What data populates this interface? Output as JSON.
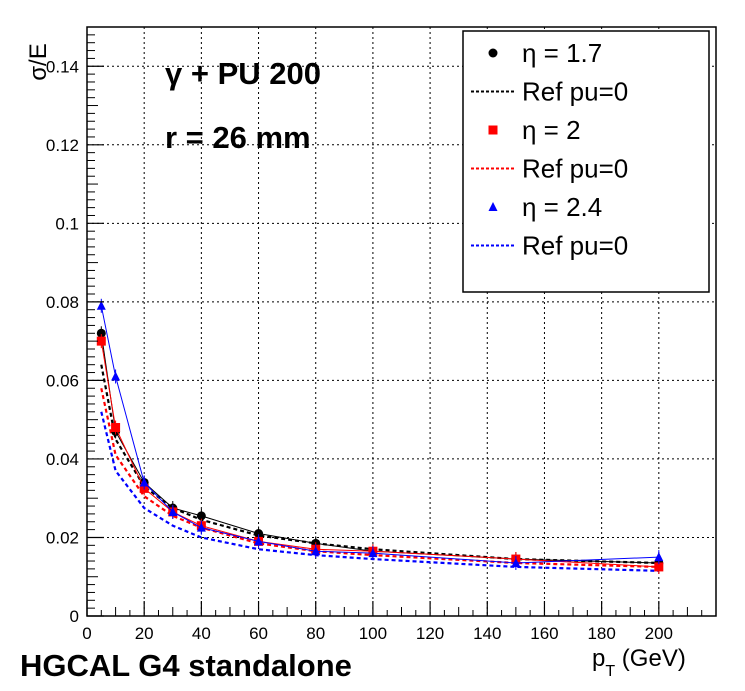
{
  "chart_data": {
    "type": "line",
    "xlabel_main": "p",
    "xlabel_sub": "T",
    "xlabel_unit": " (GeV)",
    "ylabel": "σ/E",
    "xlim": [
      0,
      220
    ],
    "ylim": [
      0,
      0.15
    ],
    "x_ticks": [
      0,
      20,
      40,
      60,
      80,
      100,
      120,
      140,
      160,
      180,
      200
    ],
    "y_ticks": [
      0,
      0.02,
      0.04,
      0.06,
      0.08,
      0.1,
      0.12,
      0.14
    ],
    "y_tick_labels": [
      "0",
      "0.02",
      "0.04",
      "0.06",
      "0.08",
      "0.1",
      "0.12",
      "0.14"
    ],
    "grid": true,
    "legend_position": "top-right",
    "annotations": [
      "γ + PU 200",
      "r =  26 mm"
    ],
    "footer": "HGCAL G4 standalone",
    "series": [
      {
        "name": "η = 1.7",
        "style": "markers",
        "marker": "circle",
        "color": "#000000",
        "x": [
          5,
          10,
          20,
          30,
          40,
          60,
          80,
          100,
          150,
          200
        ],
        "y": [
          0.072,
          0.047,
          0.034,
          0.0275,
          0.0255,
          0.021,
          0.0185,
          0.0165,
          0.0145,
          0.0135
        ]
      },
      {
        "name": "Ref pu=0",
        "style": "dashed",
        "color": "#000000",
        "x": [
          5,
          10,
          20,
          30,
          40,
          60,
          80,
          100,
          150,
          200
        ],
        "y": [
          0.064,
          0.045,
          0.033,
          0.0275,
          0.0245,
          0.0205,
          0.0185,
          0.017,
          0.0145,
          0.0135
        ]
      },
      {
        "name": "η = 2",
        "style": "markers",
        "marker": "square",
        "color": "#ff0000",
        "x": [
          5,
          10,
          20,
          30,
          40,
          60,
          80,
          100,
          150,
          200
        ],
        "y": [
          0.07,
          0.048,
          0.0325,
          0.0265,
          0.023,
          0.019,
          0.017,
          0.0165,
          0.0145,
          0.0125
        ]
      },
      {
        "name": "Ref pu=0",
        "style": "dashed",
        "color": "#ff0000",
        "x": [
          5,
          10,
          20,
          30,
          40,
          60,
          80,
          100,
          150,
          200
        ],
        "y": [
          0.058,
          0.041,
          0.0305,
          0.0255,
          0.0225,
          0.0185,
          0.0165,
          0.0155,
          0.0135,
          0.0125
        ]
      },
      {
        "name": "η = 2.4",
        "style": "markers",
        "marker": "triangle",
        "color": "#0000ff",
        "x": [
          5,
          10,
          20,
          30,
          40,
          60,
          80,
          100,
          150,
          200
        ],
        "y": [
          0.079,
          0.061,
          0.034,
          0.0265,
          0.0225,
          0.019,
          0.0165,
          0.016,
          0.0135,
          0.015
        ]
      },
      {
        "name": "Ref pu=0",
        "style": "dashed",
        "color": "#0000ff",
        "x": [
          5,
          10,
          20,
          30,
          40,
          60,
          80,
          100,
          150,
          200
        ],
        "y": [
          0.052,
          0.037,
          0.0275,
          0.023,
          0.02,
          0.017,
          0.0155,
          0.0145,
          0.0125,
          0.0115
        ]
      }
    ]
  }
}
